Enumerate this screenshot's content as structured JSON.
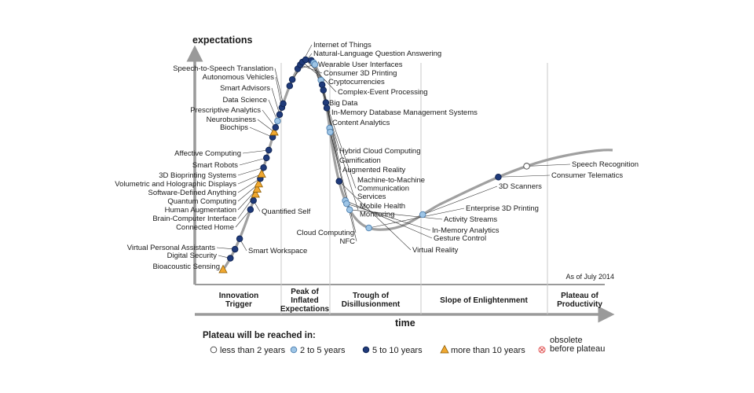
{
  "chart_data": {
    "type": "scatter",
    "title": "",
    "ylabel": "expectations",
    "xlabel": "time",
    "as_of": "As of July 2014",
    "phases": [
      {
        "lines": [
          "Innovation",
          "Trigger"
        ]
      },
      {
        "lines": [
          "Peak of",
          "Inflated",
          "Expectations"
        ]
      },
      {
        "lines": [
          "Trough of",
          "Disillusionment"
        ]
      },
      {
        "lines": [
          "Slope of Enlightenment"
        ]
      },
      {
        "lines": [
          "Plateau of",
          "Productivity"
        ]
      }
    ],
    "legend": {
      "title": "Plateau will be reached in:",
      "items": [
        {
          "key": "lt2",
          "shape": "circle",
          "color": "#ffffff",
          "label": "less than 2 years"
        },
        {
          "key": "2to5",
          "shape": "circle",
          "color": "#9ec5e6",
          "label": "2 to 5 years"
        },
        {
          "key": "5to10",
          "shape": "circle",
          "color": "#1f3a7a",
          "label": "5 to 10 years"
        },
        {
          "key": "gt10",
          "shape": "triangle",
          "color": "#f0a830",
          "label": "more than 10 years"
        },
        {
          "key": "obsolete",
          "shape": "cross",
          "color": "#e05050",
          "label": "obsolete before plateau",
          "lines": [
            "obsolete",
            "before plateau"
          ]
        }
      ]
    },
    "technologies": [
      {
        "name": "Bioacoustic Sensing",
        "cat": "gt10",
        "t": 0.0
      },
      {
        "name": "Digital Security",
        "cat": "5to10",
        "t": 0.02
      },
      {
        "name": "Virtual Personal Assistants",
        "cat": "5to10",
        "t": 0.035
      },
      {
        "name": "Smart Workspace",
        "cat": "5to10",
        "t": 0.052
      },
      {
        "name": "Connected Home",
        "cat": "5to10",
        "t": 0.098
      },
      {
        "name": "Quantified Self",
        "cat": "5to10",
        "t": 0.112
      },
      {
        "name": "Brain-Computer Interface",
        "cat": "gt10",
        "t": 0.122
      },
      {
        "name": "Human Augmentation",
        "cat": "gt10",
        "t": 0.13
      },
      {
        "name": "Quantum Computing",
        "cat": "gt10",
        "t": 0.138
      },
      {
        "name": "Software-Defined Anything",
        "cat": "5to10",
        "t": 0.146
      },
      {
        "name": "Volumetric and Holographic Displays",
        "cat": "gt10",
        "t": 0.153
      },
      {
        "name": "3D Bioprinting Systems",
        "cat": "5to10",
        "t": 0.163
      },
      {
        "name": "Smart Robots",
        "cat": "5to10",
        "t": 0.178
      },
      {
        "name": "Affective Computing",
        "cat": "5to10",
        "t": 0.19
      },
      {
        "name": "Biochips",
        "cat": "5to10",
        "t": 0.21
      },
      {
        "name": "Neurobusiness",
        "cat": "gt10",
        "t": 0.218
      },
      {
        "name": "Prescriptive Analytics",
        "cat": "5to10",
        "t": 0.225
      },
      {
        "name": "Data Science",
        "cat": "2to5",
        "t": 0.235
      },
      {
        "name": "Smart Advisors",
        "cat": "5to10",
        "t": 0.245
      },
      {
        "name": "Autonomous Vehicles",
        "cat": "5to10",
        "t": 0.256
      },
      {
        "name": "Speech-to-Speech Translation",
        "cat": "5to10",
        "t": 0.262
      },
      {
        "name": "Internet of Things",
        "cat": "5to10",
        "t": 0.29
      },
      {
        "name": "Natural-Language Question Answering",
        "cat": "5to10",
        "t": 0.3
      },
      {
        "name": "Wearable User Interfaces",
        "cat": "5to10",
        "t": 0.318
      },
      {
        "name": "Consumer 3D Printing",
        "cat": "5to10",
        "t": 0.325
      },
      {
        "name": "Cryptocurrencies",
        "cat": "5to10",
        "t": 0.33
      },
      {
        "name": "Complex-Event Processing",
        "cat": "5to10",
        "t": 0.336
      },
      {
        "name": "Big Data",
        "cat": "5to10",
        "t": 0.345
      },
      {
        "name": "In-Memory Database Management Systems",
        "cat": "2to5",
        "t": 0.35
      },
      {
        "name": "Content Analytics",
        "cat": "2to5",
        "t": 0.353
      },
      {
        "name": "Hybrid Cloud Computing",
        "cat": "2to5",
        "t": 0.378
      },
      {
        "name": "Gamification",
        "cat": "5to10",
        "t": 0.385
      },
      {
        "name": "Augmented Reality",
        "cat": "5to10",
        "t": 0.393
      },
      {
        "name": "Machine-to-Machine Communication Services",
        "lines": [
          "Machine-to-Machine",
          "Communication",
          "Services"
        ],
        "cat": "5to10",
        "t": 0.412
      },
      {
        "name": "Mobile Health Monitoring",
        "lines": [
          "Mobile Health",
          "Monitoring"
        ],
        "cat": "5to10",
        "t": 0.42
      },
      {
        "name": "Cloud Computing",
        "cat": "2to5",
        "t": 0.45
      },
      {
        "name": "NFC",
        "cat": "2to5",
        "t": 0.456
      },
      {
        "name": "Virtual Reality",
        "cat": "5to10",
        "t": 0.53
      },
      {
        "name": "Gesture Control",
        "cat": "2to5",
        "t": 0.56
      },
      {
        "name": "In-Memory Analytics",
        "cat": "2to5",
        "t": 0.565
      },
      {
        "name": "Activity Streams",
        "cat": "2to5",
        "t": 0.575
      },
      {
        "name": "Enterprise 3D Printing",
        "cat": "2to5",
        "t": 0.615
      },
      {
        "name": "3D Scanners",
        "cat": "2to5",
        "t": 0.7
      },
      {
        "name": "Consumer Telematics",
        "cat": "5to10",
        "t": 0.825
      },
      {
        "name": "Speech Recognition",
        "cat": "lt2",
        "t": 0.87
      }
    ]
  }
}
